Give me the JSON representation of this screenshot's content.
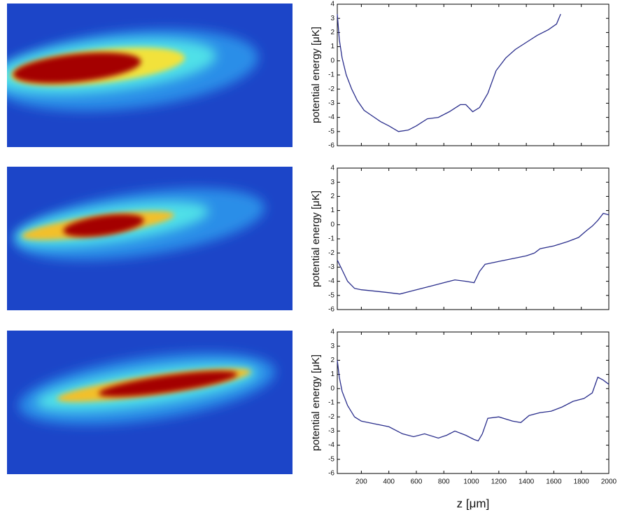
{
  "chart_data": [
    {
      "type": "line",
      "ylabel": "potential energy [μK]",
      "xlim": [
        25,
        2000
      ],
      "ylim": [
        -6,
        4
      ],
      "xticks": [
        200,
        400,
        600,
        800,
        1000,
        1200,
        1400,
        1600,
        1800,
        2000
      ],
      "yticks": [
        4,
        3,
        2,
        1,
        0,
        -1,
        -2,
        -3,
        -4,
        -5,
        -6
      ],
      "series": [
        {
          "color": "#2a2e8c",
          "x": [
            25,
            40,
            60,
            90,
            130,
            170,
            220,
            280,
            340,
            400,
            470,
            540,
            600,
            680,
            760,
            840,
            920,
            960,
            1010,
            1060,
            1120,
            1180,
            1250,
            1320,
            1400,
            1480,
            1560,
            1620,
            1650
          ],
          "values": [
            3.3,
            1.5,
            0.2,
            -1,
            -2,
            -2.8,
            -3.5,
            -3.9,
            -4.3,
            -4.6,
            -5,
            -4.9,
            -4.6,
            -4.1,
            -4,
            -3.6,
            -3.1,
            -3.1,
            -3.6,
            -3.3,
            -2.3,
            -0.7,
            0.2,
            0.8,
            1.3,
            1.8,
            2.2,
            2.6,
            3.3
          ]
        }
      ]
    },
    {
      "type": "line",
      "ylabel": "potential energy [μK]",
      "xlim": [
        25,
        2000
      ],
      "ylim": [
        -6,
        4
      ],
      "xticks": [
        200,
        400,
        600,
        800,
        1000,
        1200,
        1400,
        1600,
        1800,
        2000
      ],
      "yticks": [
        4,
        3,
        2,
        1,
        0,
        -1,
        -2,
        -3,
        -4,
        -5,
        -6
      ],
      "series": [
        {
          "color": "#2a2e8c",
          "x": [
            25,
            60,
            100,
            150,
            200,
            300,
            400,
            480,
            560,
            640,
            720,
            800,
            880,
            960,
            1020,
            1060,
            1100,
            1200,
            1300,
            1400,
            1460,
            1500,
            1600,
            1700,
            1780,
            1840,
            1880,
            1920,
            1960,
            2000
          ],
          "values": [
            -2.5,
            -3.2,
            -4,
            -4.5,
            -4.6,
            -4.7,
            -4.8,
            -4.9,
            -4.7,
            -4.5,
            -4.3,
            -4.1,
            -3.9,
            -4,
            -4.1,
            -3.3,
            -2.8,
            -2.6,
            -2.4,
            -2.2,
            -2,
            -1.7,
            -1.5,
            -1.2,
            -0.9,
            -0.4,
            -0.1,
            0.3,
            0.8,
            0.7
          ]
        }
      ]
    },
    {
      "type": "line",
      "ylabel": "potential energy [μK]",
      "xlabel": "z [μm]",
      "xlim": [
        25,
        2000
      ],
      "ylim": [
        -6,
        4
      ],
      "xticks": [
        200,
        400,
        600,
        800,
        1000,
        1200,
        1400,
        1600,
        1800,
        2000
      ],
      "yticks": [
        4,
        3,
        2,
        1,
        0,
        -1,
        -2,
        -3,
        -4,
        -5,
        -6
      ],
      "series": [
        {
          "color": "#2a2e8c",
          "x": [
            25,
            40,
            60,
            100,
            150,
            200,
            300,
            400,
            500,
            580,
            660,
            760,
            820,
            880,
            960,
            1020,
            1050,
            1080,
            1120,
            1200,
            1300,
            1360,
            1420,
            1500,
            1580,
            1660,
            1740,
            1820,
            1880,
            1920,
            1960,
            2000
          ],
          "values": [
            2,
            0.8,
            -0.2,
            -1.2,
            -2,
            -2.3,
            -2.5,
            -2.7,
            -3.2,
            -3.4,
            -3.2,
            -3.5,
            -3.3,
            -3,
            -3.3,
            -3.6,
            -3.7,
            -3.2,
            -2.1,
            -2,
            -2.3,
            -2.4,
            -1.9,
            -1.7,
            -1.6,
            -1.3,
            -0.9,
            -0.7,
            -0.3,
            0.8,
            0.6,
            0.3
          ]
        }
      ]
    }
  ]
}
